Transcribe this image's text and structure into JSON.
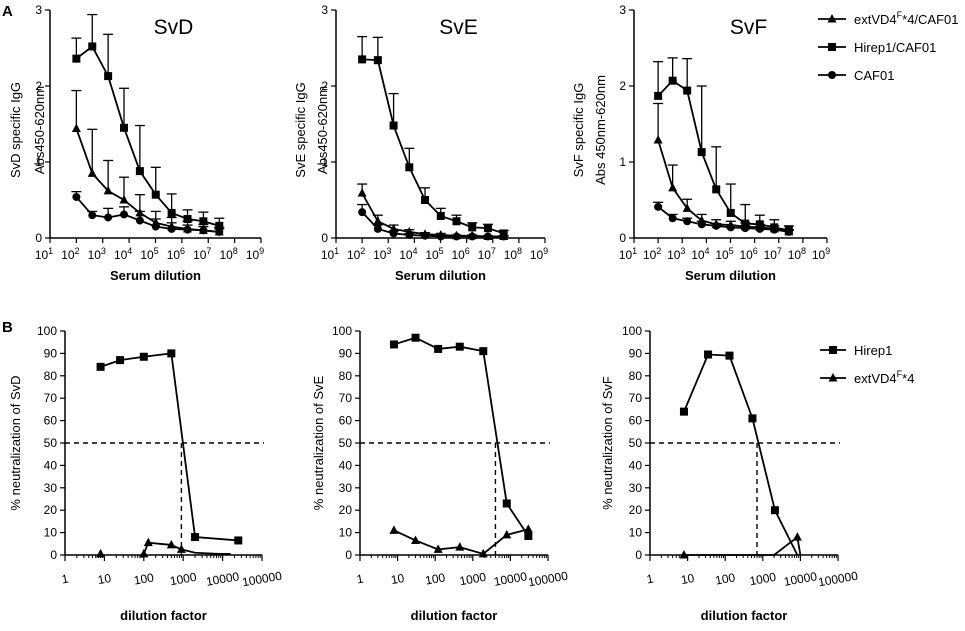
{
  "figure": {
    "panel_A_letter": "A",
    "panel_B_letter": "B",
    "legend_A": [
      {
        "label": "extVD4",
        "sup": "F",
        "suffix": "*4/CAF01",
        "marker": "triangle"
      },
      {
        "label": "Hirep1/CAF01",
        "sup": "",
        "suffix": "",
        "marker": "square"
      },
      {
        "label": "CAF01",
        "sup": "",
        "suffix": "",
        "marker": "circle"
      }
    ],
    "legend_B": [
      {
        "label": "Hirep1",
        "sup": "",
        "suffix": "",
        "marker": "square"
      },
      {
        "label": "extVD4",
        "sup": "F",
        "suffix": "*4",
        "marker": "triangle"
      }
    ]
  },
  "chart_data": [
    {
      "type": "line",
      "panel": "A",
      "title": "SvD",
      "ylabel_lines": [
        "SvD specific IgG",
        "Abs450-620nm"
      ],
      "xlabel": "Serum dilution",
      "xscale": "log10",
      "xlim_exp": [
        1,
        9
      ],
      "ylim": [
        0,
        3
      ],
      "yticks": [
        0,
        1,
        2,
        3
      ],
      "xtick_labels": [
        "10^1",
        "10^2",
        "10^3",
        "10^4",
        "10^5",
        "10^6",
        "10^7",
        "10^8",
        "10^9"
      ],
      "x_exp": [
        2,
        2.602,
        3.204,
        3.806,
        4.408,
        5.01,
        5.612,
        6.214,
        6.816,
        7.418
      ],
      "series": [
        {
          "name": "Hirep1/CAF01",
          "marker": "square",
          "values": [
            2.36,
            2.52,
            2.13,
            1.45,
            0.88,
            0.57,
            0.33,
            0.25,
            0.22,
            0.16
          ],
          "errors": [
            0.27,
            0.42,
            0.55,
            0.52,
            0.6,
            0.36,
            0.25,
            0.12,
            0.12,
            0.1
          ]
        },
        {
          "name": "extVD4F*4/CAF01",
          "marker": "triangle",
          "values": [
            1.44,
            0.85,
            0.62,
            0.5,
            0.33,
            0.2,
            0.15,
            0.12,
            0.1,
            0.08
          ],
          "errors": [
            0.5,
            0.58,
            0.4,
            0.3,
            0.24,
            0.15,
            0.12,
            0.1,
            0.08,
            0.06
          ]
        },
        {
          "name": "CAF01",
          "marker": "circle",
          "values": [
            0.54,
            0.3,
            0.27,
            0.31,
            0.23,
            0.15,
            0.12,
            0.11,
            0.1,
            0.08
          ],
          "errors": [
            0.07,
            0.05,
            0.12,
            0.1,
            0.12,
            0.1,
            0.08,
            0.06,
            0.05,
            0.04
          ]
        }
      ]
    },
    {
      "type": "line",
      "panel": "A",
      "title": "SvE",
      "ylabel_lines": [
        "SvE specific IgG",
        "Abs450-620nm"
      ],
      "xlabel": "Serum dilution",
      "xscale": "log10",
      "xlim_exp": [
        1,
        9
      ],
      "ylim": [
        0,
        3
      ],
      "yticks": [
        0,
        1,
        2,
        3
      ],
      "xtick_labels": [
        "10^1",
        "10^2",
        "10^3",
        "10^4",
        "10^5",
        "10^6",
        "10^7",
        "10^8",
        "10^9"
      ],
      "x_exp": [
        2,
        2.602,
        3.204,
        3.806,
        4.408,
        5.01,
        5.612,
        6.214,
        6.816,
        7.418
      ],
      "series": [
        {
          "name": "Hirep1/CAF01",
          "marker": "square",
          "values": [
            2.35,
            2.34,
            1.48,
            0.93,
            0.5,
            0.29,
            0.22,
            0.14,
            0.13,
            0.06
          ],
          "errors": [
            0.3,
            0.3,
            0.42,
            0.25,
            0.16,
            0.1,
            0.08,
            0.06,
            0.05,
            0.04
          ]
        },
        {
          "name": "extVD4F*4/CAF01",
          "marker": "triangle",
          "values": [
            0.59,
            0.22,
            0.12,
            0.08,
            0.05,
            0.04,
            0.03,
            0.03,
            0.02,
            0.02
          ],
          "errors": [
            0.12,
            0.08,
            0.05,
            0.03,
            0.02,
            0.02,
            0.01,
            0.01,
            0.01,
            0.01
          ]
        },
        {
          "name": "CAF01",
          "marker": "circle",
          "values": [
            0.34,
            0.12,
            0.06,
            0.04,
            0.03,
            0.02,
            0.02,
            0.02,
            0.02,
            0.02
          ],
          "errors": [
            0.1,
            0.05,
            0.03,
            0.02,
            0.01,
            0.01,
            0.01,
            0.01,
            0.01,
            0.01
          ]
        }
      ]
    },
    {
      "type": "line",
      "panel": "A",
      "title": "SvF",
      "ylabel_lines": [
        "SvF specific IgG",
        "Abs 450nm-620nm"
      ],
      "xlabel": "Serum dilution",
      "xscale": "log10",
      "xlim_exp": [
        1,
        9
      ],
      "ylim": [
        0,
        3
      ],
      "yticks": [
        0,
        1,
        2,
        3
      ],
      "xtick_labels": [
        "10^1",
        "10^2",
        "10^3",
        "10^4",
        "10^5",
        "10^6",
        "10^7",
        "10^8",
        "10^9"
      ],
      "x_exp": [
        2,
        2.602,
        3.204,
        3.806,
        4.408,
        5.01,
        5.612,
        6.214,
        6.816,
        7.418
      ],
      "series": [
        {
          "name": "Hirep1/CAF01",
          "marker": "square",
          "values": [
            1.87,
            2.07,
            1.94,
            1.13,
            0.64,
            0.33,
            0.19,
            0.18,
            0.14,
            0.1
          ],
          "errors": [
            0.45,
            0.3,
            0.42,
            0.87,
            0.56,
            0.38,
            0.25,
            0.12,
            0.1,
            0.06
          ]
        },
        {
          "name": "extVD4F*4/CAF01",
          "marker": "triangle",
          "values": [
            1.29,
            0.66,
            0.39,
            0.23,
            0.18,
            0.17,
            0.15,
            0.14,
            0.12,
            0.08
          ],
          "errors": [
            0.48,
            0.3,
            0.12,
            0.08,
            0.06,
            0.05,
            0.05,
            0.04,
            0.04,
            0.03
          ]
        },
        {
          "name": "CAF01",
          "marker": "circle",
          "values": [
            0.41,
            0.26,
            0.22,
            0.18,
            0.16,
            0.14,
            0.13,
            0.12,
            0.11,
            0.08
          ],
          "errors": [
            0.06,
            0.05,
            0.04,
            0.04,
            0.03,
            0.03,
            0.03,
            0.03,
            0.02,
            0.02
          ]
        }
      ]
    },
    {
      "type": "line",
      "panel": "B",
      "title": "",
      "ylabel": "% neutralization of SvD",
      "xlabel": "dilution factor",
      "xscale": "log10",
      "xlim": [
        1,
        100000
      ],
      "xtick_labels": [
        "1",
        "10",
        "100",
        "1000",
        "10000",
        "100000"
      ],
      "ylim": [
        0,
        100
      ],
      "yticks": [
        0,
        10,
        20,
        30,
        40,
        50,
        60,
        70,
        80,
        90,
        100
      ],
      "threshold": 50,
      "crossing_x": 900,
      "series": [
        {
          "name": "Hirep1",
          "marker": "square",
          "x": [
            8,
            25,
            100,
            500,
            2000,
            25000
          ],
          "values": [
            84,
            87,
            88.5,
            90,
            8,
            6.5
          ]
        },
        {
          "name": "extVD4F*4",
          "marker": "triangle",
          "x": [
            8,
            100,
            500,
            900,
            2000,
            8000,
            16000
          ],
          "values": [
            0.5,
            0.5,
            4.5,
            2.5,
            1,
            0.5,
            0.5
          ]
        },
        {
          "name": "extVD4F*4",
          "marker": "triangle",
          "x": [
            100,
            130,
            500,
            900,
            2000,
            8000,
            16000
          ],
          "values": [
            0.5,
            5.5,
            4.5,
            2.5,
            1,
            0.5,
            0.5
          ]
        }
      ]
    },
    {
      "type": "line",
      "panel": "B",
      "title": "",
      "ylabel": "% neutralization of SvE",
      "xlabel": "dilution factor",
      "xscale": "log10",
      "xlim": [
        1,
        100000
      ],
      "xtick_labels": [
        "1",
        "10",
        "100",
        "1000",
        "10000",
        "100000"
      ],
      "ylim": [
        0,
        100
      ],
      "yticks": [
        0,
        10,
        20,
        30,
        40,
        50,
        60,
        70,
        80,
        90,
        100
      ],
      "threshold": 50,
      "crossing_x": 4000,
      "series": [
        {
          "name": "Hirep1",
          "marker": "square",
          "x": [
            8,
            30,
            120,
            450,
            1900,
            8000,
            30000
          ],
          "values": [
            94,
            97,
            92,
            93,
            91,
            23,
            8.5
          ]
        },
        {
          "name": "extVD4F*4",
          "marker": "triangle",
          "x": [
            8,
            30,
            120,
            450,
            1900,
            8000,
            30000
          ],
          "values": [
            11,
            6.5,
            2.5,
            3.5,
            0.5,
            9,
            11.5
          ]
        }
      ]
    },
    {
      "type": "line",
      "panel": "B",
      "title": "",
      "ylabel": "% neutralization of SvF",
      "xlabel": "dilution factor",
      "xscale": "log10",
      "xlim": [
        1,
        100000
      ],
      "xtick_labels": [
        "1",
        "10",
        "100",
        "1000",
        "10000",
        "100000"
      ],
      "ylim": [
        0,
        100
      ],
      "yticks": [
        0,
        10,
        20,
        30,
        40,
        50,
        60,
        70,
        80,
        90,
        100
      ],
      "threshold": 50,
      "crossing_x": 700,
      "series": [
        {
          "name": "Hirep1",
          "marker": "square",
          "x": [
            8,
            35,
            130,
            530,
            2100,
            8300
          ],
          "values": [
            64,
            89.5,
            89,
            61,
            20,
            0
          ]
        },
        {
          "name": "extVD4F*4",
          "marker": "triangle",
          "x": [
            8,
            2000,
            8300,
            10000
          ],
          "values": [
            0,
            0,
            8,
            0
          ]
        }
      ]
    }
  ]
}
